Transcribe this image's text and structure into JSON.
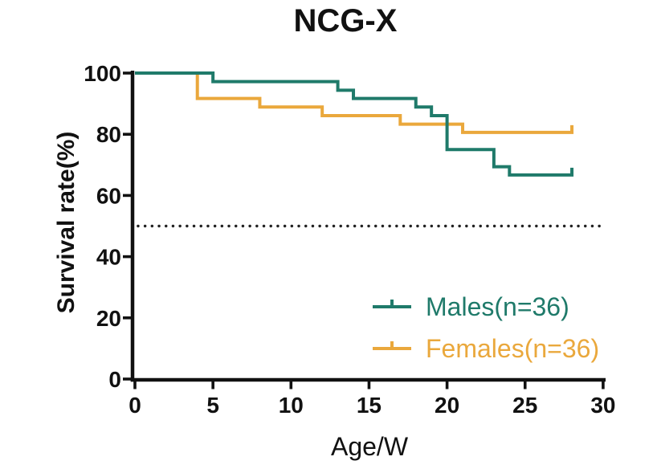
{
  "chart_data": {
    "type": "line",
    "subtype": "kaplan_meier_step_survival",
    "title": "NCG-X",
    "xlabel": "Age/W",
    "ylabel": "Survival rate(%)",
    "xlim": [
      0,
      30
    ],
    "ylim": [
      0,
      100
    ],
    "x_ticks": [
      0,
      5,
      10,
      15,
      20,
      25,
      30
    ],
    "y_ticks": [
      100,
      80,
      60,
      40,
      20,
      0
    ],
    "grid": false,
    "legend_position": "lower-right-inside",
    "axis_color": "#111111",
    "reference_line": {
      "y": 50,
      "style": "dotted",
      "color": "#222222"
    },
    "series": [
      {
        "name": "Males(n=36)",
        "color": "#1f7a6a",
        "steps": [
          [
            0,
            100
          ],
          [
            5,
            97.2
          ],
          [
            13,
            94.4
          ],
          [
            14,
            91.7
          ],
          [
            18,
            88.9
          ],
          [
            19,
            86.1
          ],
          [
            20,
            75.0
          ],
          [
            23,
            69.4
          ],
          [
            24,
            66.7
          ]
        ],
        "end_week": 28,
        "end_tick": true
      },
      {
        "name": "Females(n=36)",
        "color": "#eaa83c",
        "steps": [
          [
            0,
            100
          ],
          [
            4,
            91.7
          ],
          [
            8,
            88.9
          ],
          [
            12,
            86.1
          ],
          [
            17,
            83.3
          ],
          [
            21,
            80.6
          ]
        ],
        "end_week": 28,
        "end_tick": true
      }
    ]
  }
}
